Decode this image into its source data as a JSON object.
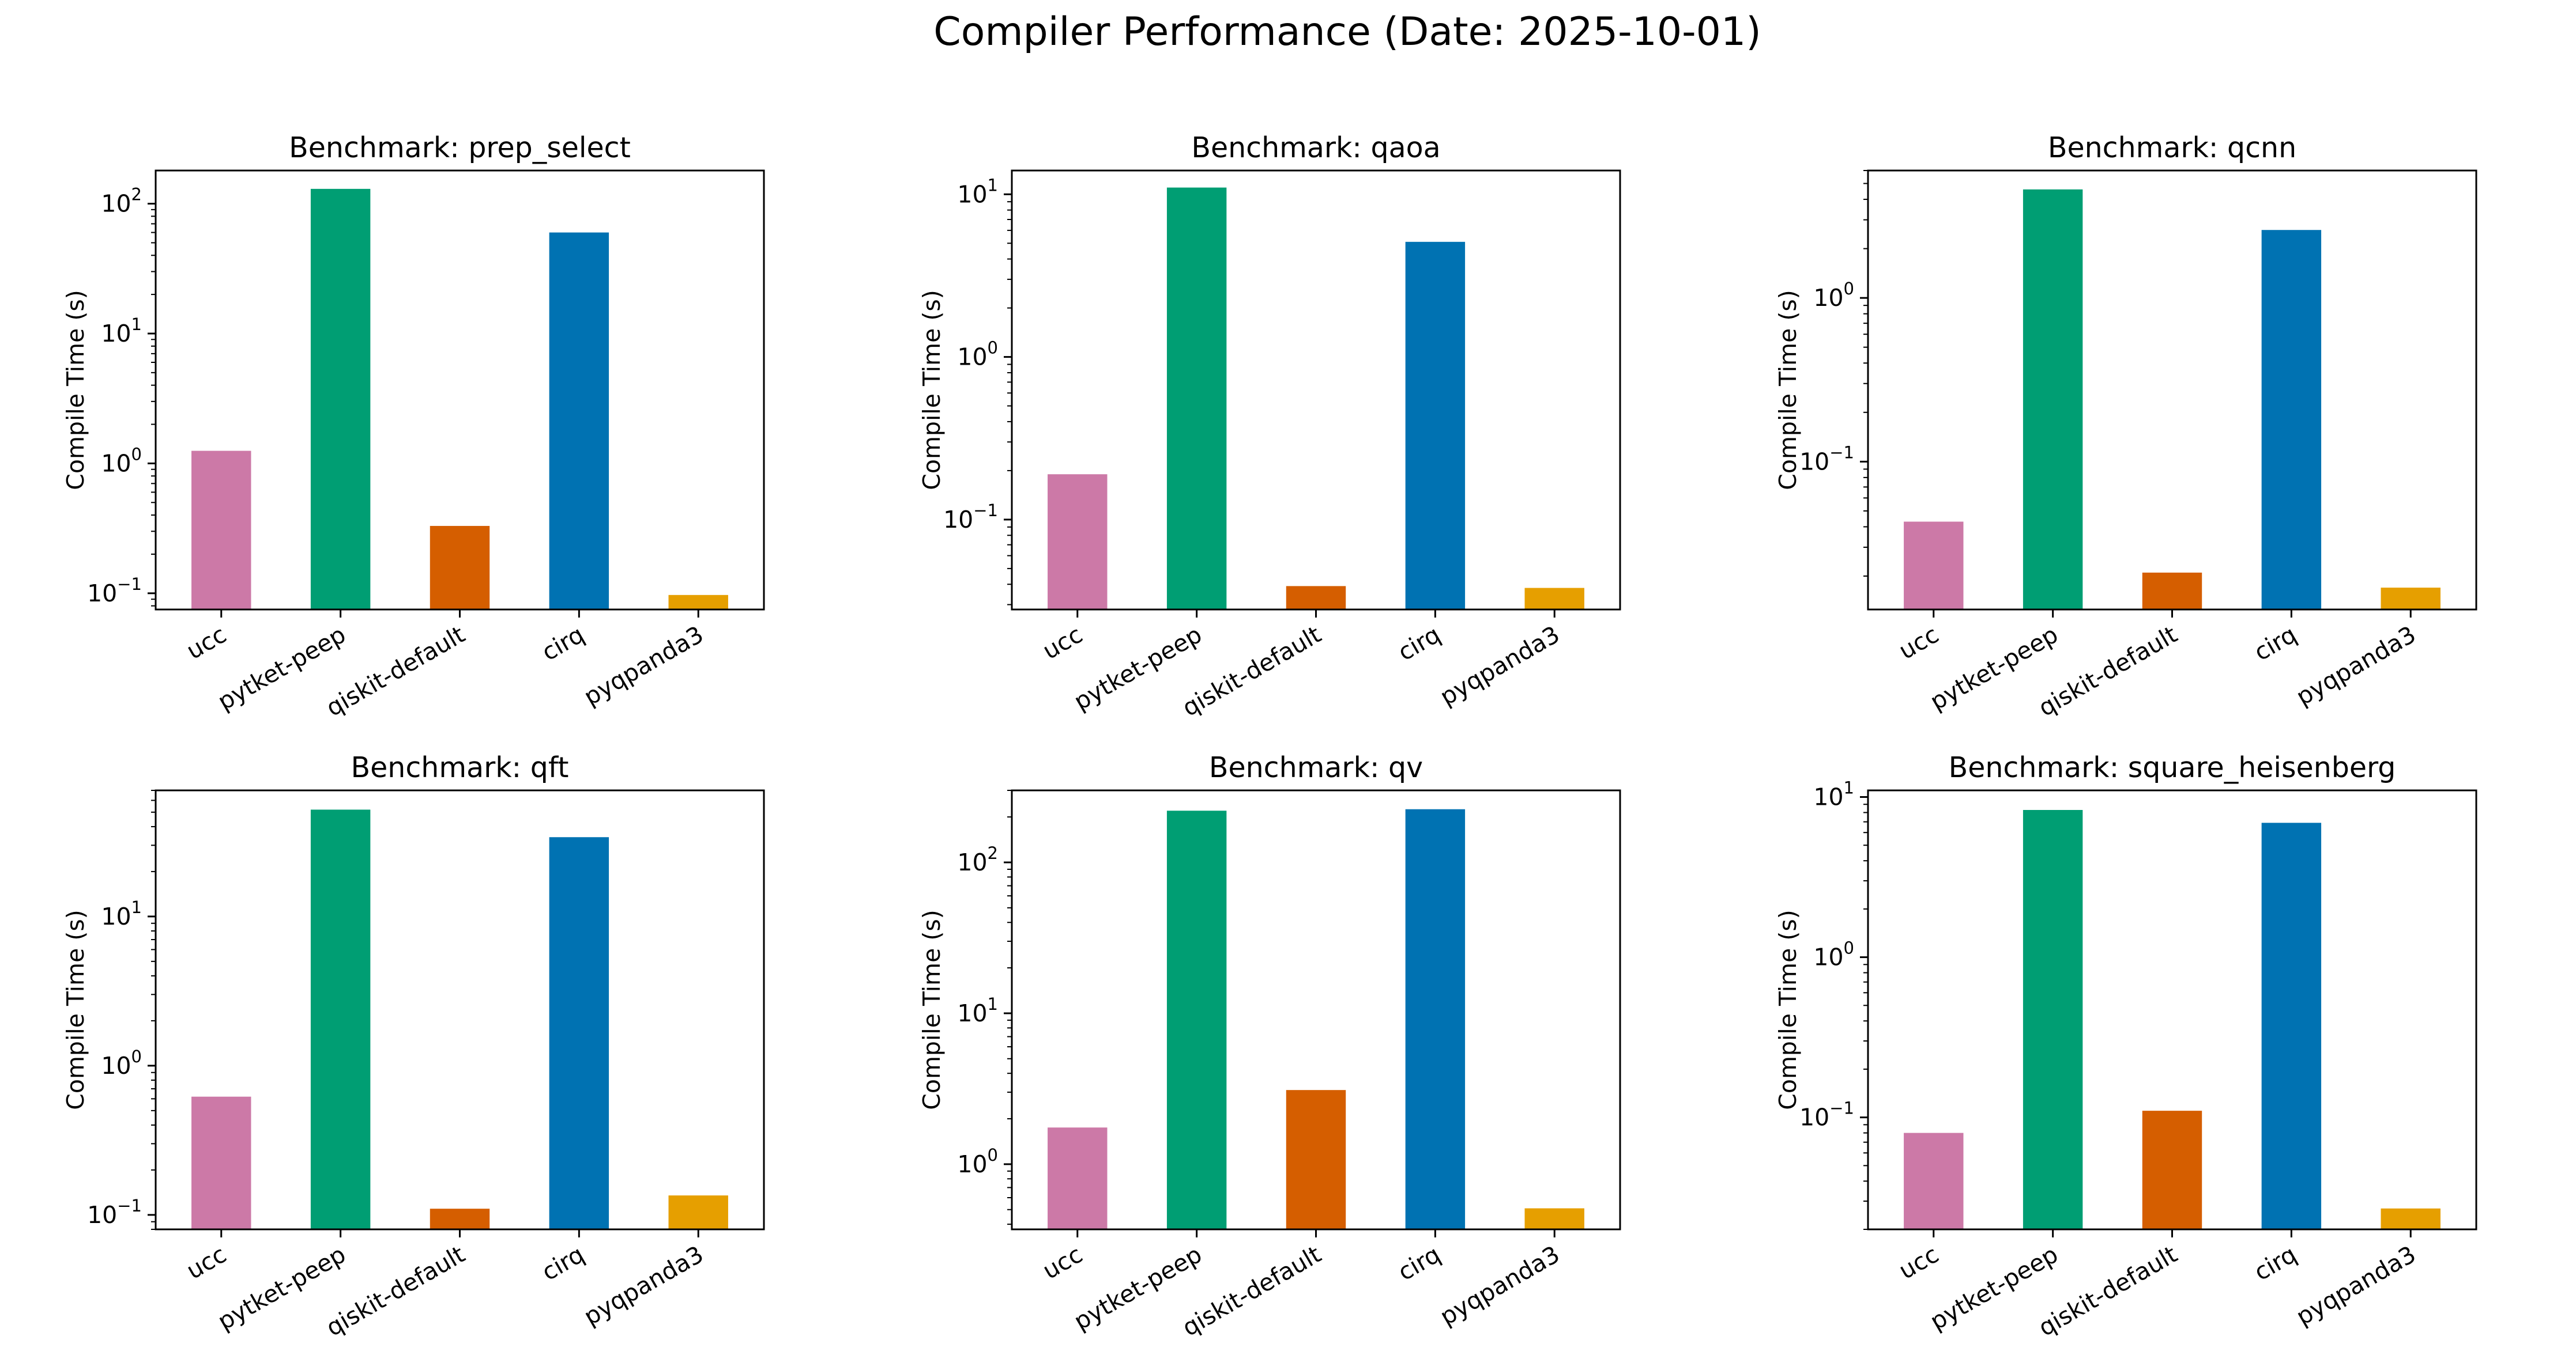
{
  "figure": {
    "suptitle": "Compiler Performance (Date: 2025-10-01)"
  },
  "colors": {
    "ucc": "#cc79a7",
    "pytket-peep": "#009e73",
    "qiskit-default": "#d55e00",
    "cirq": "#0072b2",
    "pyqpanda3": "#e69f00"
  },
  "chart_data": [
    {
      "type": "bar",
      "title": "Benchmark: prep_select",
      "ylabel": "Compile Time (s)",
      "yscale": "log",
      "ylim": [
        0.075,
        180
      ],
      "categories": [
        "ucc",
        "pytket-peep",
        "qiskit-default",
        "cirq",
        "pyqpanda3"
      ],
      "values": [
        1.25,
        130,
        0.33,
        60,
        0.097
      ],
      "grid": false
    },
    {
      "type": "bar",
      "title": "Benchmark: qaoa",
      "ylabel": "Compile Time (s)",
      "yscale": "log",
      "ylim": [
        0.028,
        14
      ],
      "categories": [
        "ucc",
        "pytket-peep",
        "qiskit-default",
        "cirq",
        "pyqpanda3"
      ],
      "values": [
        0.19,
        11.0,
        0.039,
        5.1,
        0.038
      ],
      "grid": false
    },
    {
      "type": "bar",
      "title": "Benchmark: qcnn",
      "ylabel": "Compile Time (s)",
      "yscale": "log",
      "ylim": [
        0.0125,
        6.0
      ],
      "categories": [
        "ucc",
        "pytket-peep",
        "qiskit-default",
        "cirq",
        "pyqpanda3"
      ],
      "values": [
        0.043,
        4.6,
        0.021,
        2.6,
        0.017
      ],
      "grid": false
    },
    {
      "type": "bar",
      "title": "Benchmark: qft",
      "ylabel": "Compile Time (s)",
      "yscale": "log",
      "ylim": [
        0.08,
        70
      ],
      "categories": [
        "ucc",
        "pytket-peep",
        "qiskit-default",
        "cirq",
        "pyqpanda3"
      ],
      "values": [
        0.62,
        52,
        0.11,
        34,
        0.135
      ],
      "grid": false
    },
    {
      "type": "bar",
      "title": "Benchmark: qv",
      "ylabel": "Compile Time (s)",
      "yscale": "log",
      "ylim": [
        0.37,
        300
      ],
      "categories": [
        "ucc",
        "pytket-peep",
        "qiskit-default",
        "cirq",
        "pyqpanda3"
      ],
      "values": [
        1.75,
        220,
        3.1,
        225,
        0.51
      ],
      "grid": false
    },
    {
      "type": "bar",
      "title": "Benchmark: square_heisenberg",
      "ylabel": "Compile Time (s)",
      "yscale": "log",
      "ylim": [
        0.02,
        11
      ],
      "categories": [
        "ucc",
        "pytket-peep",
        "qiskit-default",
        "cirq",
        "pyqpanda3"
      ],
      "values": [
        0.08,
        8.3,
        0.11,
        6.9,
        0.027
      ],
      "grid": false
    }
  ]
}
